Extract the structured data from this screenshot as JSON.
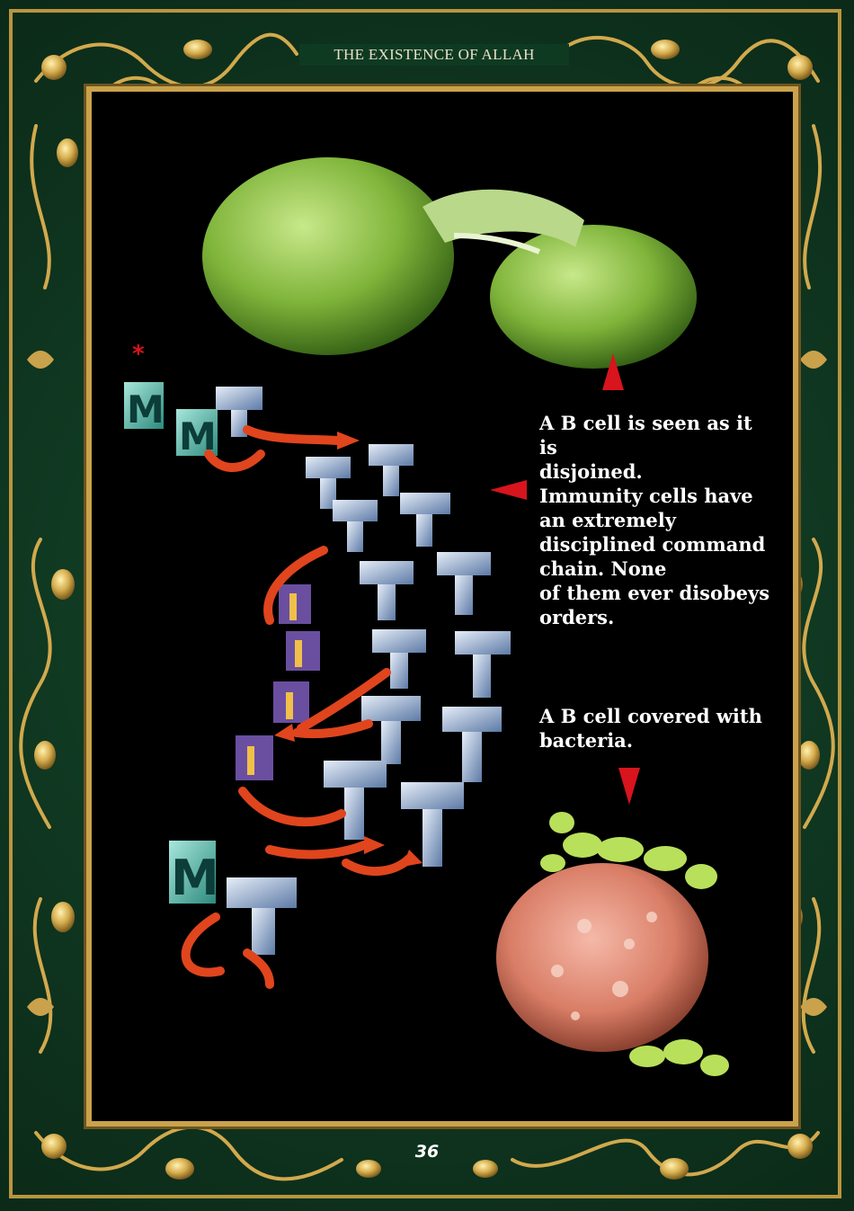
{
  "header": {
    "book_title": "THE EXISTENCE OF ALLAH"
  },
  "captions": {
    "split_cell": "A B cell is seen as it is\ndisjoined.",
    "command_chain": "Immunity cells have\nan extremely\ndisciplined command\nchain. None\nof them ever disobeys\norders.",
    "covered_cell": "A B cell covered with\nbacteria."
  },
  "footer": {
    "page_number": "36"
  },
  "colors": {
    "frame_green": "#0f3a22",
    "frame_gold": "#c9a24b",
    "panel_black": "#000000",
    "pointer_red": "#d8141c",
    "cell_green": "#8fc24a",
    "cell_salmon": "#e08d78"
  }
}
